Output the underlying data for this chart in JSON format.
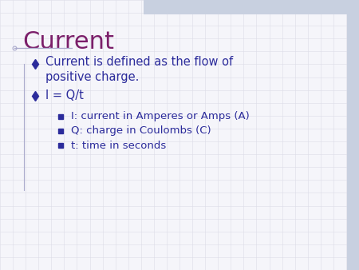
{
  "title": "Current",
  "title_color": "#7B1F6A",
  "title_fontsize": 22,
  "background_color": "#F5F5FA",
  "grid_color": "#DCDCE8",
  "bullet_color": "#2B2B9B",
  "text_color": "#2B2B9B",
  "divider_color": "#AAAACC",
  "header_bar_color": "#C8D0E0",
  "figsize": [
    4.5,
    3.38
  ],
  "dpi": 100,
  "bullet1_line1": "Current is defined as the flow of",
  "bullet1_line2": "positive charge.",
  "bullet2_text": "I = Q/t",
  "sub1_text": "I: current in Amperes or Amps (A)",
  "sub2_text": "Q: charge in Coulombs (C)",
  "sub3_text": "t: time in seconds"
}
